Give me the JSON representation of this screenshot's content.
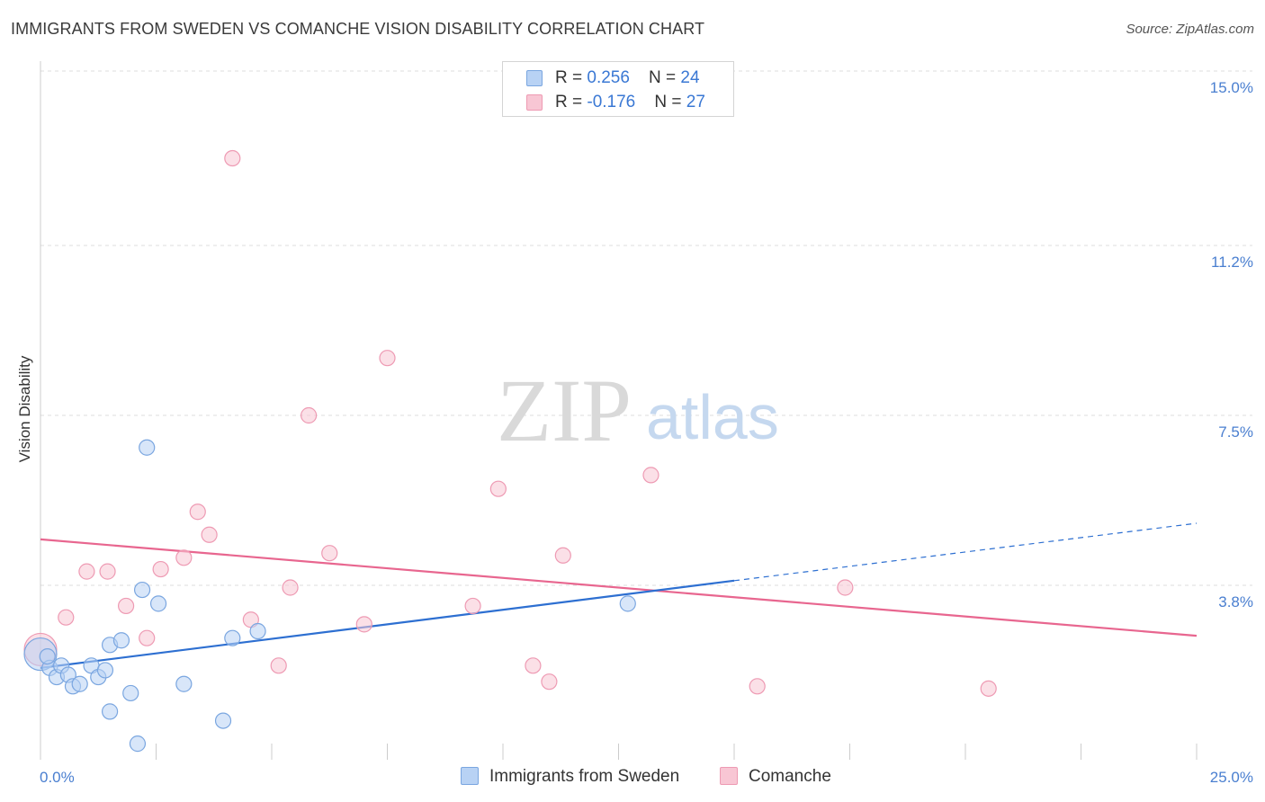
{
  "title": "IMMIGRANTS FROM SWEDEN VS COMANCHE VISION DISABILITY CORRELATION CHART",
  "source": "Source: ZipAtlas.com",
  "watermark": {
    "zip": "ZIP",
    "atlas": "atlas"
  },
  "colors": {
    "sweden_fill": "#b8d2f4",
    "sweden_stroke": "#7aa6e0",
    "sweden_line": "#2d6fd1",
    "comanche_fill": "#f8c6d4",
    "comanche_stroke": "#ee9ab3",
    "comanche_line": "#e8668f",
    "grid": "#dddddd",
    "tick_text": "#4a7fd0"
  },
  "stats": [
    {
      "r_label": "R = ",
      "r_value": "0.256",
      "n_label": "N = ",
      "n_value": "24"
    },
    {
      "r_label": "R = ",
      "r_value": "-0.176",
      "n_label": "N = ",
      "n_value": "27"
    }
  ],
  "legend": [
    {
      "label": "Immigrants from Sweden"
    },
    {
      "label": "Comanche"
    }
  ],
  "chart_data": {
    "type": "scatter",
    "title": "IMMIGRANTS FROM SWEDEN VS COMANCHE VISION DISABILITY CORRELATION CHART",
    "xlabel": "",
    "ylabel": "Vision Disability",
    "xlim": [
      0,
      25
    ],
    "ylim": [
      0,
      15
    ],
    "x_tick_labels": [
      "0.0%",
      "25.0%"
    ],
    "y_ticks": [
      3.8,
      7.5,
      11.2,
      15.0
    ],
    "y_tick_labels": [
      "3.8%",
      "7.5%",
      "11.2%",
      "15.0%"
    ],
    "grid": true,
    "legend_position": "bottom-center",
    "series": [
      {
        "name": "Immigrants from Sweden",
        "points": [
          [
            0.0,
            2.3
          ],
          [
            0.2,
            2.0
          ],
          [
            0.35,
            1.8
          ],
          [
            0.45,
            2.05
          ],
          [
            0.6,
            1.85
          ],
          [
            0.7,
            1.6
          ],
          [
            0.85,
            1.65
          ],
          [
            1.1,
            2.05
          ],
          [
            1.25,
            1.8
          ],
          [
            1.4,
            1.95
          ],
          [
            1.5,
            1.05
          ],
          [
            1.5,
            2.5
          ],
          [
            1.75,
            2.6
          ],
          [
            1.95,
            1.45
          ],
          [
            2.1,
            0.35
          ],
          [
            2.2,
            3.7
          ],
          [
            2.3,
            6.8
          ],
          [
            2.55,
            3.4
          ],
          [
            3.1,
            1.65
          ],
          [
            3.95,
            0.85
          ],
          [
            4.15,
            2.65
          ],
          [
            4.7,
            2.8
          ],
          [
            12.7,
            3.4
          ],
          [
            0.15,
            2.25
          ]
        ],
        "trend": {
          "x": [
            0,
            15
          ],
          "y": [
            2.0,
            3.9
          ],
          "dashed_x": [
            15,
            25
          ],
          "dashed_y": [
            3.9,
            5.15
          ]
        }
      },
      {
        "name": "Comanche",
        "points": [
          [
            0.0,
            2.4
          ],
          [
            0.55,
            3.1
          ],
          [
            1.0,
            4.1
          ],
          [
            1.45,
            4.1
          ],
          [
            1.85,
            3.35
          ],
          [
            2.3,
            2.65
          ],
          [
            2.6,
            4.15
          ],
          [
            3.1,
            4.4
          ],
          [
            3.4,
            5.4
          ],
          [
            3.65,
            4.9
          ],
          [
            4.15,
            13.1
          ],
          [
            4.55,
            3.05
          ],
          [
            5.15,
            2.05
          ],
          [
            5.4,
            3.75
          ],
          [
            5.8,
            7.5
          ],
          [
            6.25,
            4.5
          ],
          [
            7.0,
            2.95
          ],
          [
            7.5,
            8.75
          ],
          [
            9.35,
            3.35
          ],
          [
            9.9,
            5.9
          ],
          [
            10.65,
            2.05
          ],
          [
            11.0,
            1.7
          ],
          [
            11.3,
            4.45
          ],
          [
            13.2,
            6.2
          ],
          [
            15.5,
            1.6
          ],
          [
            17.4,
            3.75
          ],
          [
            20.5,
            1.55
          ]
        ],
        "trend": {
          "x": [
            0,
            25
          ],
          "y": [
            4.8,
            2.7
          ]
        }
      }
    ]
  }
}
